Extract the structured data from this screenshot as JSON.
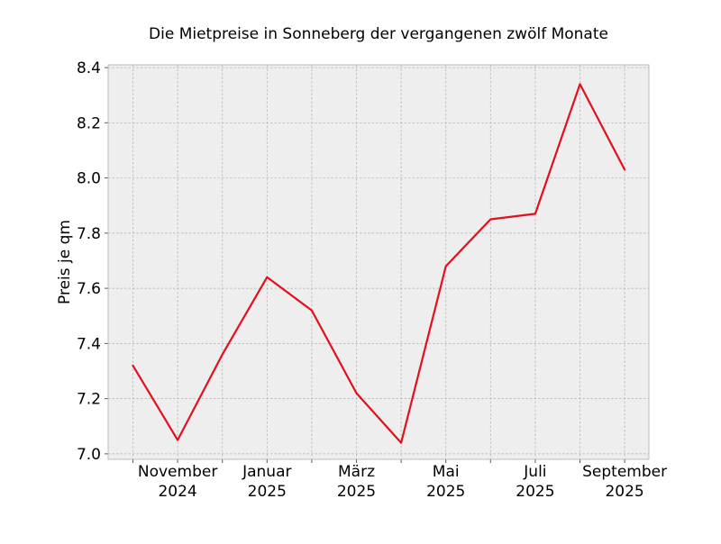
{
  "chart_data": {
    "type": "line",
    "title": "Die Mietpreise in Sonneberg der vergangenen zwölf Monate",
    "xlabel": "",
    "ylabel": "Preis je qm",
    "x": [
      "2024-10",
      "2024-11",
      "2024-12",
      "2025-01",
      "2025-02",
      "2025-03",
      "2025-04",
      "2025-05",
      "2025-06",
      "2025-07",
      "2025-08",
      "2025-09"
    ],
    "x_tick_labels": [
      {
        "x": "2024-11",
        "line1": "November",
        "line2": "2024"
      },
      {
        "x": "2025-01",
        "line1": "Januar",
        "line2": "2025"
      },
      {
        "x": "2025-03",
        "line1": "März",
        "line2": "2025"
      },
      {
        "x": "2025-05",
        "line1": "Mai",
        "line2": "2025"
      },
      {
        "x": "2025-07",
        "line1": "Juli",
        "line2": "2025"
      },
      {
        "x": "2025-09",
        "line1": "September",
        "line2": "2025"
      }
    ],
    "y_ticks": [
      7.0,
      7.2,
      7.4,
      7.6,
      7.8,
      8.0,
      8.2,
      8.4
    ],
    "y_tick_labels": [
      "7.0",
      "7.2",
      "7.4",
      "7.6",
      "7.8",
      "8.0",
      "8.2",
      "8.4"
    ],
    "ylim": [
      6.98,
      8.41
    ],
    "grid": true,
    "series": [
      {
        "values": [
          7.32,
          7.05,
          7.36,
          7.64,
          7.52,
          7.22,
          7.04,
          7.68,
          7.85,
          7.87,
          8.34,
          8.03
        ]
      }
    ],
    "colors": {
      "line": "#e3101c",
      "plot_background": "#eeeeee",
      "grid": "#b0b0b0",
      "axis_frame": "#bcbcbc",
      "tick": "#555555"
    }
  }
}
